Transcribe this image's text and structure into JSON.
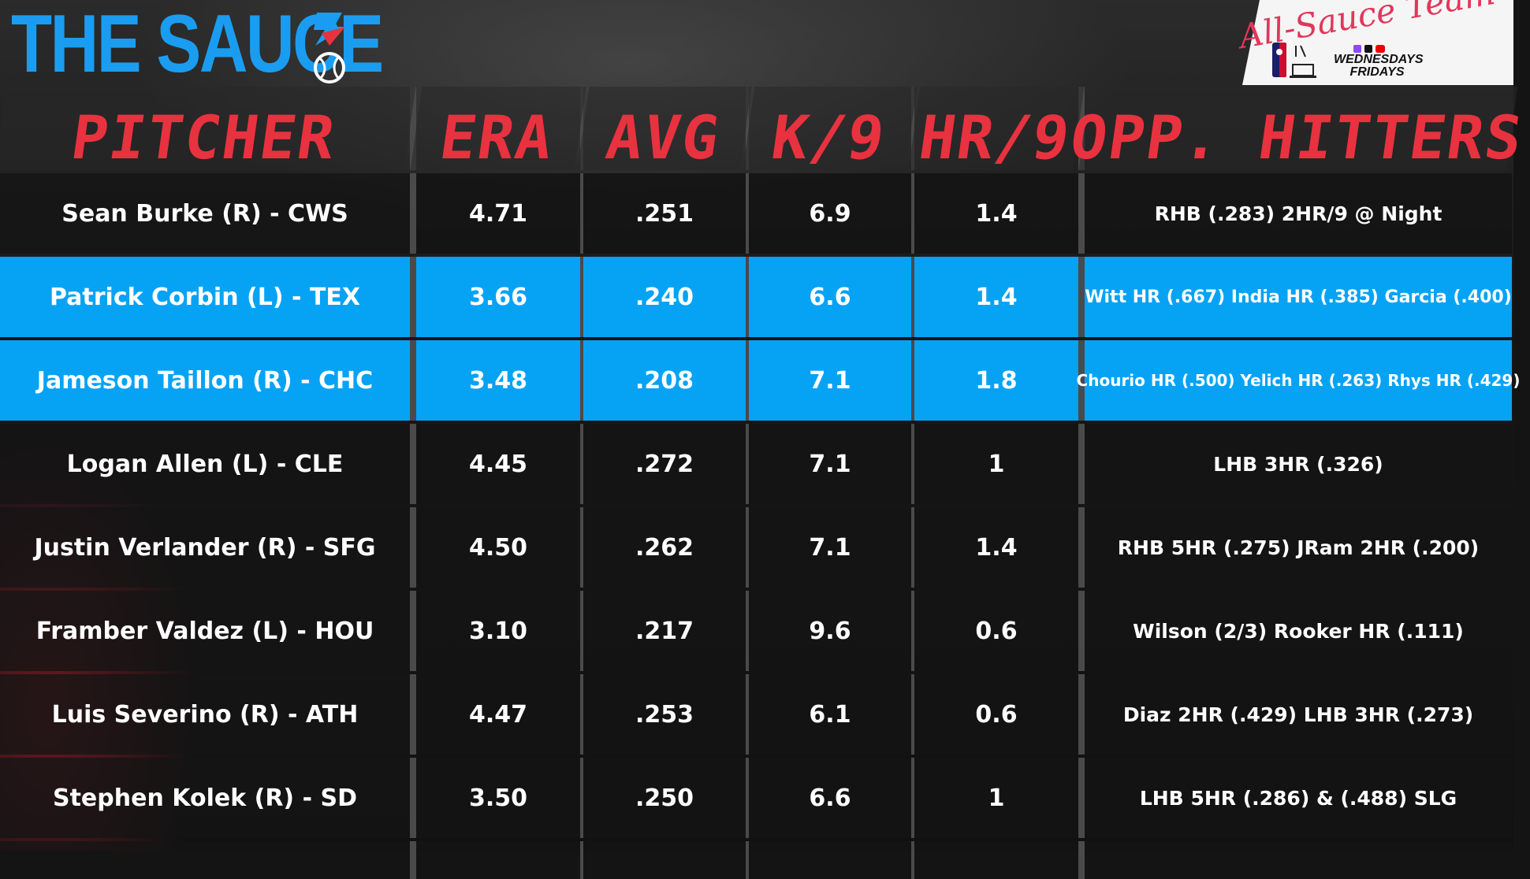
{
  "brand": {
    "title": "THE SAUCE",
    "badge_script": "All-Sauce Team",
    "badge_days": [
      "WEDNESDAYS",
      "FRIDAYS"
    ]
  },
  "colors": {
    "accent_blue": "#06a3f5",
    "header_red": "#e8323f",
    "logo_blue": "#1a9df0"
  },
  "table": {
    "headers": [
      "PITCHER",
      "ERA",
      "AVG",
      "K/9",
      "HR/9",
      "OPP. HITTERS"
    ],
    "rows": [
      {
        "pitcher": "Sean Burke (R) - CWS",
        "era": "4.71",
        "avg": ".251",
        "k9": "6.9",
        "hr9": "1.4",
        "hitters": "RHB (.283) 2HR/9 @ Night",
        "highlight": false
      },
      {
        "pitcher": "Patrick Corbin (L) - TEX",
        "era": "3.66",
        "avg": ".240",
        "k9": "6.6",
        "hr9": "1.4",
        "hitters": "Witt HR (.667) India HR (.385) Garcia (.400)",
        "highlight": true
      },
      {
        "pitcher": "Jameson Taillon (R) - CHC",
        "era": "3.48",
        "avg": ".208",
        "k9": "7.1",
        "hr9": "1.8",
        "hitters": "Chourio HR (.500) Yelich HR (.263) Rhys HR (.429)",
        "highlight": true
      },
      {
        "pitcher": "Logan Allen (L) - CLE",
        "era": "4.45",
        "avg": ".272",
        "k9": "7.1",
        "hr9": "1",
        "hitters": "LHB 3HR (.326)",
        "highlight": false
      },
      {
        "pitcher": "Justin Verlander (R) - SFG",
        "era": "4.50",
        "avg": ".262",
        "k9": "7.1",
        "hr9": "1.4",
        "hitters": "RHB 5HR (.275) JRam 2HR (.200)",
        "highlight": false
      },
      {
        "pitcher": "Framber Valdez (L) - HOU",
        "era": "3.10",
        "avg": ".217",
        "k9": "9.6",
        "hr9": "0.6",
        "hitters": "Wilson (2/3) Rooker HR (.111)",
        "highlight": false
      },
      {
        "pitcher": "Luis Severino (R) - ATH",
        "era": "4.47",
        "avg": ".253",
        "k9": "6.1",
        "hr9": "0.6",
        "hitters": "Diaz 2HR (.429) LHB 3HR (.273)",
        "highlight": false
      },
      {
        "pitcher": "Stephen Kolek (R) - SD",
        "era": "3.50",
        "avg": ".250",
        "k9": "6.6",
        "hr9": "1",
        "hitters": "LHB 5HR (.286) & (.488) SLG",
        "highlight": false
      }
    ]
  }
}
